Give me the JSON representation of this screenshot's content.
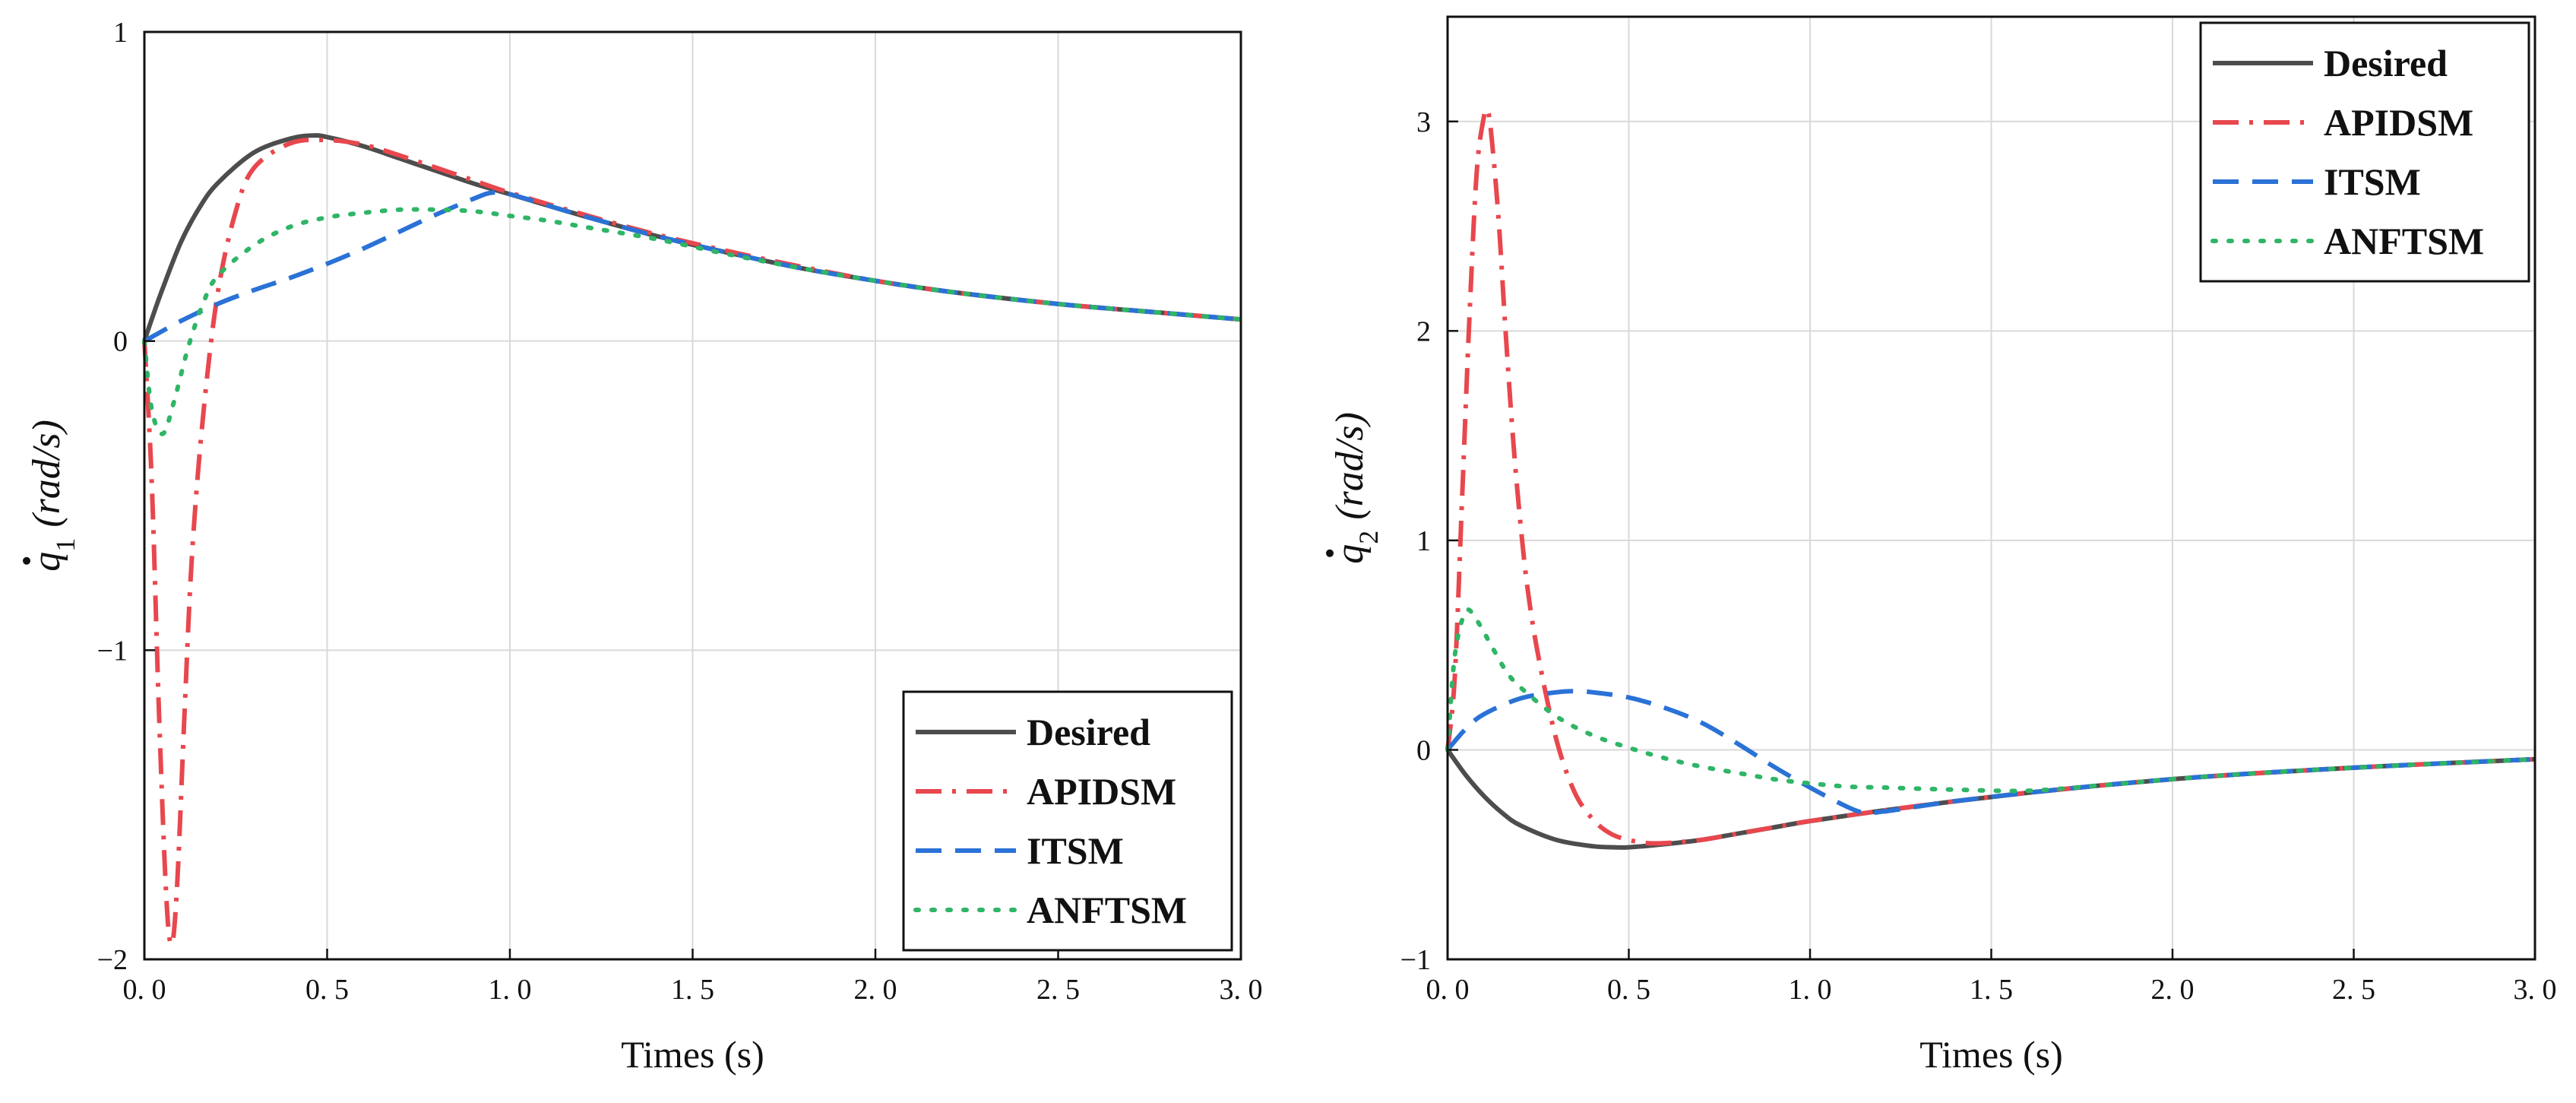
{
  "chart_data": [
    {
      "type": "line",
      "title": "",
      "xlabel": "Times (s)",
      "ylabel": {
        "symbol": "q",
        "subscript": "1",
        "unit": "(rad/s)"
      },
      "xlim": [
        0,
        3
      ],
      "ylim": [
        -2,
        1
      ],
      "xticks": [
        0,
        0.5,
        1,
        1.5,
        2,
        2.5,
        3
      ],
      "xtick_labels": [
        "0. 0",
        "0. 5",
        "1. 0",
        "1. 5",
        "2. 0",
        "2. 5",
        "3. 0"
      ],
      "yticks": [
        -2,
        -1,
        0,
        1
      ],
      "ytick_labels": [
        "−2",
        "−1",
        "0",
        "1"
      ],
      "grid": true,
      "legend_position": "bottom-right",
      "series": [
        {
          "name": "Desired",
          "color": "#4d4d4d",
          "dash": "solid",
          "x": [
            0,
            0.02,
            0.05,
            0.1,
            0.15,
            0.2,
            0.3,
            0.4,
            0.46,
            0.5,
            0.6,
            0.7,
            0.8,
            0.9,
            1.0,
            1.2,
            1.4,
            1.6,
            1.8,
            2.0,
            2.2,
            2.5,
            2.8,
            3.0
          ],
          "y": [
            0,
            0.07,
            0.17,
            0.32,
            0.43,
            0.51,
            0.61,
            0.655,
            0.665,
            0.66,
            0.63,
            0.59,
            0.55,
            0.51,
            0.475,
            0.405,
            0.34,
            0.285,
            0.235,
            0.195,
            0.16,
            0.12,
            0.09,
            0.07
          ]
        },
        {
          "name": "APIDSM",
          "color": "#e8474e",
          "dash": "dashdot",
          "x": [
            0,
            0.02,
            0.04,
            0.06,
            0.075,
            0.09,
            0.11,
            0.13,
            0.16,
            0.2,
            0.25,
            0.3,
            0.4,
            0.5,
            0.6,
            0.7,
            0.8,
            0.9,
            1.0,
            1.2,
            1.4,
            1.6,
            1.8,
            2.0,
            2.2,
            2.5,
            2.8,
            3.0
          ],
          "y": [
            0,
            -0.45,
            -1.2,
            -1.8,
            -1.95,
            -1.75,
            -1.2,
            -0.7,
            -0.25,
            0.15,
            0.42,
            0.56,
            0.64,
            0.65,
            0.635,
            0.6,
            0.56,
            0.52,
            0.48,
            0.41,
            0.345,
            0.29,
            0.24,
            0.195,
            0.16,
            0.12,
            0.09,
            0.07
          ]
        },
        {
          "name": "ITSM",
          "color": "#2a72d6",
          "dash": "dashed",
          "x": [
            0,
            0.1,
            0.2,
            0.3,
            0.4,
            0.5,
            0.6,
            0.7,
            0.8,
            0.9,
            0.95,
            1.0,
            1.1,
            1.2,
            1.4,
            1.6,
            1.8,
            2.0,
            2.2,
            2.5,
            2.8,
            3.0
          ],
          "y": [
            0,
            0.065,
            0.12,
            0.165,
            0.205,
            0.25,
            0.3,
            0.355,
            0.41,
            0.46,
            0.48,
            0.475,
            0.44,
            0.405,
            0.34,
            0.285,
            0.235,
            0.195,
            0.16,
            0.12,
            0.09,
            0.07
          ]
        },
        {
          "name": "ANFTSM",
          "color": "#2fb566",
          "dash": "dotted",
          "x": [
            0,
            0.02,
            0.05,
            0.08,
            0.12,
            0.16,
            0.2,
            0.3,
            0.4,
            0.5,
            0.6,
            0.7,
            0.8,
            0.9,
            1.0,
            1.1,
            1.2,
            1.4,
            1.6,
            1.8,
            2.0,
            2.2,
            2.5,
            2.8,
            3.0
          ],
          "y": [
            0,
            -0.22,
            -0.3,
            -0.2,
            -0.02,
            0.12,
            0.21,
            0.31,
            0.37,
            0.4,
            0.415,
            0.425,
            0.425,
            0.42,
            0.405,
            0.39,
            0.37,
            0.33,
            0.28,
            0.235,
            0.195,
            0.16,
            0.12,
            0.09,
            0.07
          ]
        }
      ]
    },
    {
      "type": "line",
      "title": "",
      "xlabel": "Times (s)",
      "ylabel": {
        "symbol": "q",
        "subscript": "2",
        "unit": "(rad/s)"
      },
      "xlim": [
        0,
        3
      ],
      "ylim": [
        -1,
        3.5
      ],
      "xticks": [
        0,
        0.5,
        1,
        1.5,
        2,
        2.5,
        3
      ],
      "xtick_labels": [
        "0. 0",
        "0. 5",
        "1. 0",
        "1. 5",
        "2. 0",
        "2. 5",
        "3. 0"
      ],
      "yticks": [
        -1,
        0,
        1,
        2,
        3
      ],
      "ytick_labels": [
        "−1",
        "0",
        "1",
        "2",
        "3"
      ],
      "grid": true,
      "legend_position": "top-right",
      "series": [
        {
          "name": "Desired",
          "color": "#4d4d4d",
          "dash": "solid",
          "x": [
            0,
            0.05,
            0.1,
            0.15,
            0.2,
            0.3,
            0.4,
            0.46,
            0.5,
            0.6,
            0.7,
            0.8,
            0.9,
            1.0,
            1.2,
            1.4,
            1.6,
            1.8,
            2.0,
            2.2,
            2.5,
            2.8,
            3.0
          ],
          "y": [
            0,
            -0.12,
            -0.22,
            -0.3,
            -0.36,
            -0.43,
            -0.46,
            -0.465,
            -0.465,
            -0.45,
            -0.43,
            -0.4,
            -0.37,
            -0.34,
            -0.29,
            -0.245,
            -0.205,
            -0.17,
            -0.14,
            -0.115,
            -0.085,
            -0.06,
            -0.045
          ]
        },
        {
          "name": "APIDSM",
          "color": "#e8474e",
          "dash": "dashdot",
          "x": [
            0,
            0.02,
            0.04,
            0.06,
            0.08,
            0.1,
            0.11,
            0.12,
            0.14,
            0.16,
            0.18,
            0.2,
            0.22,
            0.25,
            0.3,
            0.35,
            0.4,
            0.45,
            0.5,
            0.55,
            0.6,
            0.7,
            0.8,
            0.9,
            1.0,
            1.2,
            1.4,
            1.6,
            1.8,
            2.0,
            2.2,
            2.5,
            2.8,
            3.0
          ],
          "y": [
            0,
            0.35,
            1.2,
            2.05,
            2.75,
            3.02,
            3.05,
            2.95,
            2.55,
            2.0,
            1.5,
            1.1,
            0.78,
            0.45,
            0.05,
            -0.2,
            -0.33,
            -0.4,
            -0.43,
            -0.445,
            -0.445,
            -0.43,
            -0.4,
            -0.37,
            -0.34,
            -0.29,
            -0.245,
            -0.205,
            -0.17,
            -0.14,
            -0.115,
            -0.085,
            -0.06,
            -0.045
          ]
        },
        {
          "name": "ITSM",
          "color": "#2a72d6",
          "dash": "dashed",
          "x": [
            0,
            0.05,
            0.1,
            0.2,
            0.3,
            0.35,
            0.4,
            0.5,
            0.6,
            0.7,
            0.8,
            0.9,
            1.0,
            1.1,
            1.15,
            1.2,
            1.3,
            1.4,
            1.6,
            1.8,
            2.0,
            2.2,
            2.5,
            2.8,
            3.0
          ],
          "y": [
            0,
            0.1,
            0.17,
            0.245,
            0.275,
            0.28,
            0.275,
            0.25,
            0.2,
            0.13,
            0.03,
            -0.08,
            -0.18,
            -0.27,
            -0.3,
            -0.295,
            -0.27,
            -0.245,
            -0.205,
            -0.17,
            -0.14,
            -0.115,
            -0.085,
            -0.06,
            -0.045
          ]
        },
        {
          "name": "ANFTSM",
          "color": "#2fb566",
          "dash": "dotted",
          "x": [
            0,
            0.02,
            0.05,
            0.08,
            0.12,
            0.16,
            0.2,
            0.3,
            0.4,
            0.5,
            0.6,
            0.7,
            0.8,
            0.9,
            1.0,
            1.1,
            1.2,
            1.4,
            1.6,
            1.8,
            2.0,
            2.2,
            2.5,
            2.8,
            3.0
          ],
          "y": [
            0,
            0.45,
            0.66,
            0.62,
            0.5,
            0.38,
            0.3,
            0.16,
            0.07,
            0.01,
            -0.04,
            -0.08,
            -0.11,
            -0.14,
            -0.16,
            -0.175,
            -0.18,
            -0.19,
            -0.195,
            -0.17,
            -0.14,
            -0.115,
            -0.085,
            -0.06,
            -0.045
          ]
        }
      ]
    }
  ]
}
